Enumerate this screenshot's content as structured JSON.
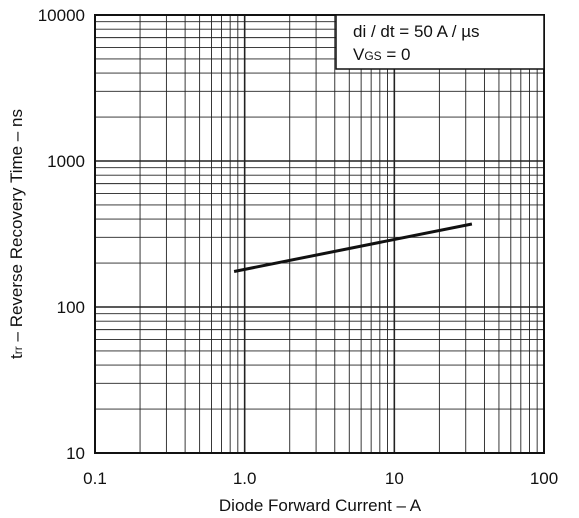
{
  "chart_data": {
    "type": "line",
    "xscale": "log",
    "yscale": "log",
    "xlim": [
      0.1,
      100
    ],
    "ylim": [
      10,
      10000
    ],
    "xlabel": "Diode Forward Current – A",
    "ylabel_main": "t",
    "ylabel_sub": "rr",
    "ylabel_rest": " – Reverse Recovery Time – ns",
    "x_ticks": [
      {
        "value": 0.1,
        "label": "0.1"
      },
      {
        "value": 1,
        "label": "1.0"
      },
      {
        "value": 10,
        "label": "10"
      },
      {
        "value": 100,
        "label": "100"
      }
    ],
    "y_ticks": [
      {
        "value": 10,
        "label": "10"
      },
      {
        "value": 100,
        "label": "100"
      },
      {
        "value": 1000,
        "label": "1000"
      },
      {
        "value": 10000,
        "label": "10000"
      }
    ],
    "grid": true,
    "series": [
      {
        "x": [
          0.85,
          33
        ],
        "y": [
          175,
          370
        ]
      }
    ],
    "annotation": {
      "line1": "di / dt = 50  A / µs",
      "line2_main": "V",
      "line2_sub": "GS",
      "line2_rest": " = 0"
    }
  }
}
